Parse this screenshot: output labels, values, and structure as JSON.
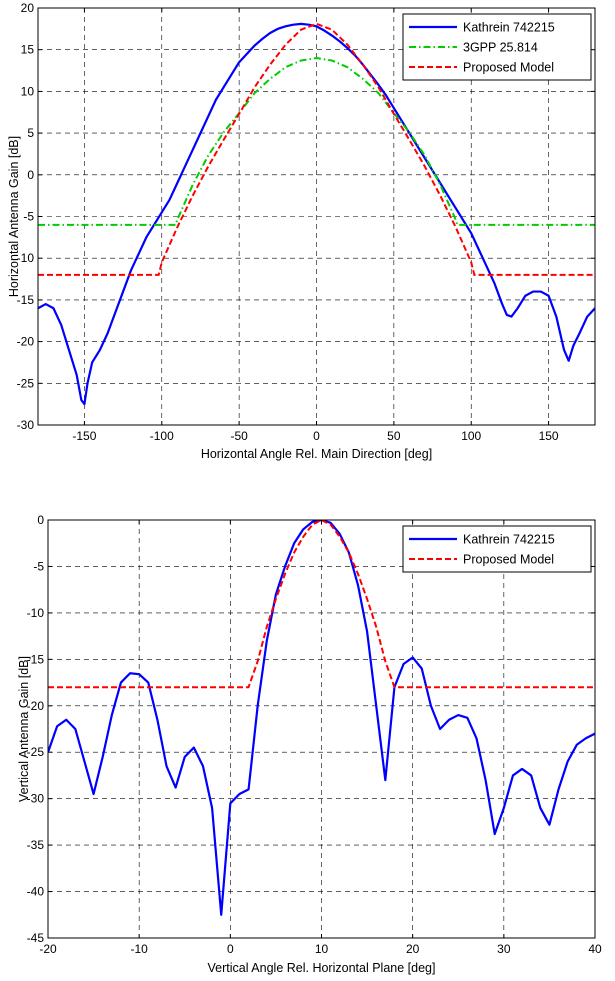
{
  "chart_data": [
    {
      "type": "line",
      "xlabel": "Horizontal Angle Rel. Main Direction [deg]",
      "ylabel": "Horizontal Antenna Gain [dB]",
      "xlim": [
        -180,
        180
      ],
      "ylim": [
        -30,
        20
      ],
      "xticks": [
        -150,
        -100,
        -50,
        0,
        50,
        100,
        150
      ],
      "yticks": [
        -30,
        -25,
        -20,
        -15,
        -10,
        -5,
        0,
        5,
        10,
        15,
        20
      ],
      "grid": true,
      "legend_position": "top-right",
      "series": [
        {
          "name": "Kathrein 742215",
          "color": "#0000ff",
          "style": "solid",
          "x": [
            -180,
            -175,
            -170,
            -165,
            -160,
            -155,
            -152,
            -150,
            -148,
            -145,
            -140,
            -135,
            -130,
            -125,
            -120,
            -115,
            -110,
            -105,
            -100,
            -95,
            -90,
            -85,
            -80,
            -75,
            -70,
            -65,
            -60,
            -55,
            -50,
            -45,
            -40,
            -35,
            -30,
            -25,
            -20,
            -15,
            -10,
            -5,
            0,
            5,
            10,
            15,
            20,
            25,
            30,
            35,
            40,
            45,
            50,
            55,
            60,
            65,
            70,
            75,
            80,
            85,
            90,
            95,
            100,
            105,
            110,
            115,
            120,
            123,
            126,
            130,
            135,
            140,
            145,
            150,
            155,
            160,
            163,
            166,
            170,
            175,
            180
          ],
          "values": [
            -16,
            -15.5,
            -16,
            -18,
            -21,
            -24,
            -27,
            -27.5,
            -25,
            -22.5,
            -21,
            -19,
            -16.5,
            -14,
            -11.5,
            -9.5,
            -7.5,
            -6,
            -4.5,
            -3,
            -1,
            1,
            3,
            5,
            7,
            9,
            10.5,
            12,
            13.5,
            14.5,
            15.5,
            16.3,
            17,
            17.5,
            17.8,
            18,
            18.1,
            18,
            17.8,
            17.3,
            16.7,
            16,
            15.2,
            14.3,
            13.2,
            12,
            10.8,
            9.5,
            8,
            6.5,
            5,
            3.5,
            2,
            0.5,
            -1,
            -2.5,
            -4,
            -5.5,
            -7,
            -9,
            -11,
            -13,
            -15.5,
            -16.8,
            -17,
            -16,
            -14.5,
            -14,
            -14,
            -14.5,
            -17,
            -21,
            -22.3,
            -20.5,
            -19,
            -17,
            -16
          ]
        },
        {
          "name": "3GPP 25.814",
          "color": "#00cc00",
          "style": "dashdot",
          "x": [
            -180,
            -91,
            -90,
            -80,
            -70,
            -60,
            -50,
            -40,
            -30,
            -20,
            -10,
            0,
            10,
            20,
            30,
            40,
            50,
            60,
            70,
            80,
            90,
            91,
            180
          ],
          "values": [
            -6,
            -6,
            -5.4,
            -1.2,
            2.3,
            5.1,
            7.4,
            9.8,
            11.5,
            12.9,
            13.7,
            14,
            13.7,
            12.9,
            11.5,
            9.8,
            7.4,
            5.1,
            2.3,
            -1.2,
            -5.4,
            -6,
            -6
          ]
        },
        {
          "name": "Proposed Model",
          "color": "#ff0000",
          "style": "dashed",
          "x": [
            -180,
            -102,
            -100,
            -90,
            -80,
            -70,
            -60,
            -50,
            -40,
            -30,
            -20,
            -10,
            0,
            10,
            20,
            30,
            40,
            50,
            60,
            70,
            80,
            90,
            100,
            102,
            180
          ],
          "values": [
            -12,
            -12,
            -10.5,
            -6.3,
            -2.5,
            1,
            4.2,
            7.3,
            10.5,
            13.2,
            15.6,
            17.4,
            18.1,
            17.4,
            15.6,
            13.2,
            10.5,
            7.3,
            4.2,
            1,
            -2.5,
            -6.3,
            -10.5,
            -12,
            -12
          ]
        }
      ]
    },
    {
      "type": "line",
      "xlabel": "Vertical Angle Rel. Horizontal Plane [deg]",
      "ylabel": "Vertical Antenna Gain [dB]",
      "xlim": [
        -20,
        40
      ],
      "ylim": [
        -45,
        0
      ],
      "xticks": [
        -20,
        -10,
        0,
        10,
        20,
        30,
        40
      ],
      "yticks": [
        -45,
        -40,
        -35,
        -30,
        -25,
        -20,
        -15,
        -10,
        -5,
        0
      ],
      "grid": true,
      "legend_position": "top-right",
      "series": [
        {
          "name": "Kathrein 742215",
          "color": "#0000ff",
          "style": "solid",
          "x": [
            -20,
            -19,
            -18,
            -17,
            -16,
            -15,
            -14,
            -13,
            -12,
            -11,
            -10,
            -9,
            -8,
            -7,
            -6,
            -5,
            -4,
            -3,
            -2,
            -1,
            0,
            1,
            2,
            3,
            4,
            5,
            6,
            7,
            8,
            9,
            10,
            11,
            12,
            13,
            14,
            15,
            16,
            17,
            18,
            19,
            20,
            21,
            22,
            23,
            24,
            25,
            26,
            27,
            28,
            29,
            30,
            31,
            32,
            33,
            34,
            35,
            36,
            37,
            38,
            39,
            40
          ],
          "values": [
            -25,
            -22.2,
            -21.5,
            -22.5,
            -26,
            -29.5,
            -25.5,
            -21,
            -17.5,
            -16.5,
            -16.6,
            -17.5,
            -21.5,
            -26.5,
            -28.8,
            -25.5,
            -24.5,
            -26.5,
            -31,
            -42.5,
            -30.5,
            -29.5,
            -29,
            -20,
            -13,
            -8,
            -5,
            -2.5,
            -1,
            -0.2,
            0,
            -0.3,
            -1.5,
            -3.5,
            -7,
            -12,
            -20,
            -28,
            -18,
            -15.5,
            -14.8,
            -16,
            -20,
            -22.5,
            -21.5,
            -21,
            -21.3,
            -23.5,
            -28,
            -33.8,
            -31,
            -27.5,
            -26.8,
            -27.5,
            -31,
            -32.8,
            -29,
            -26,
            -24.2,
            -23.5,
            -23
          ]
        },
        {
          "name": "Proposed Model",
          "color": "#ff0000",
          "style": "dashed",
          "x": [
            -20,
            2,
            3,
            4,
            5,
            6,
            7,
            8,
            9,
            10,
            11,
            12,
            13,
            14,
            15,
            16,
            17,
            18,
            40
          ],
          "values": [
            -18,
            -18,
            -15.2,
            -11.5,
            -8.5,
            -5.8,
            -3.5,
            -1.8,
            -0.5,
            0,
            -0.5,
            -1.8,
            -3.5,
            -5.8,
            -8.5,
            -11.5,
            -15.2,
            -18,
            -18
          ]
        }
      ]
    }
  ]
}
